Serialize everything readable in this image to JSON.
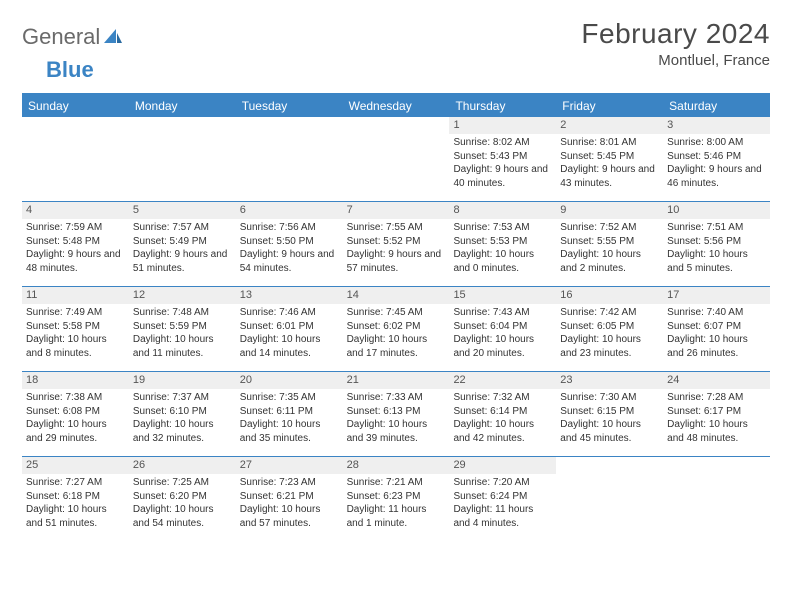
{
  "logo": {
    "text_gray": "General",
    "text_blue": "Blue"
  },
  "header": {
    "title": "February 2024",
    "location": "Montluel, France"
  },
  "weekdays": [
    "Sunday",
    "Monday",
    "Tuesday",
    "Wednesday",
    "Thursday",
    "Friday",
    "Saturday"
  ],
  "colors": {
    "accent": "#3b84c4",
    "daynum_bg": "#efefef",
    "text": "#4a4a4a"
  },
  "weeks": [
    [
      {
        "n": "",
        "sunrise": "",
        "sunset": "",
        "daylight": ""
      },
      {
        "n": "",
        "sunrise": "",
        "sunset": "",
        "daylight": ""
      },
      {
        "n": "",
        "sunrise": "",
        "sunset": "",
        "daylight": ""
      },
      {
        "n": "",
        "sunrise": "",
        "sunset": "",
        "daylight": ""
      },
      {
        "n": "1",
        "sunrise": "Sunrise: 8:02 AM",
        "sunset": "Sunset: 5:43 PM",
        "daylight": "Daylight: 9 hours and 40 minutes."
      },
      {
        "n": "2",
        "sunrise": "Sunrise: 8:01 AM",
        "sunset": "Sunset: 5:45 PM",
        "daylight": "Daylight: 9 hours and 43 minutes."
      },
      {
        "n": "3",
        "sunrise": "Sunrise: 8:00 AM",
        "sunset": "Sunset: 5:46 PM",
        "daylight": "Daylight: 9 hours and 46 minutes."
      }
    ],
    [
      {
        "n": "4",
        "sunrise": "Sunrise: 7:59 AM",
        "sunset": "Sunset: 5:48 PM",
        "daylight": "Daylight: 9 hours and 48 minutes."
      },
      {
        "n": "5",
        "sunrise": "Sunrise: 7:57 AM",
        "sunset": "Sunset: 5:49 PM",
        "daylight": "Daylight: 9 hours and 51 minutes."
      },
      {
        "n": "6",
        "sunrise": "Sunrise: 7:56 AM",
        "sunset": "Sunset: 5:50 PM",
        "daylight": "Daylight: 9 hours and 54 minutes."
      },
      {
        "n": "7",
        "sunrise": "Sunrise: 7:55 AM",
        "sunset": "Sunset: 5:52 PM",
        "daylight": "Daylight: 9 hours and 57 minutes."
      },
      {
        "n": "8",
        "sunrise": "Sunrise: 7:53 AM",
        "sunset": "Sunset: 5:53 PM",
        "daylight": "Daylight: 10 hours and 0 minutes."
      },
      {
        "n": "9",
        "sunrise": "Sunrise: 7:52 AM",
        "sunset": "Sunset: 5:55 PM",
        "daylight": "Daylight: 10 hours and 2 minutes."
      },
      {
        "n": "10",
        "sunrise": "Sunrise: 7:51 AM",
        "sunset": "Sunset: 5:56 PM",
        "daylight": "Daylight: 10 hours and 5 minutes."
      }
    ],
    [
      {
        "n": "11",
        "sunrise": "Sunrise: 7:49 AM",
        "sunset": "Sunset: 5:58 PM",
        "daylight": "Daylight: 10 hours and 8 minutes."
      },
      {
        "n": "12",
        "sunrise": "Sunrise: 7:48 AM",
        "sunset": "Sunset: 5:59 PM",
        "daylight": "Daylight: 10 hours and 11 minutes."
      },
      {
        "n": "13",
        "sunrise": "Sunrise: 7:46 AM",
        "sunset": "Sunset: 6:01 PM",
        "daylight": "Daylight: 10 hours and 14 minutes."
      },
      {
        "n": "14",
        "sunrise": "Sunrise: 7:45 AM",
        "sunset": "Sunset: 6:02 PM",
        "daylight": "Daylight: 10 hours and 17 minutes."
      },
      {
        "n": "15",
        "sunrise": "Sunrise: 7:43 AM",
        "sunset": "Sunset: 6:04 PM",
        "daylight": "Daylight: 10 hours and 20 minutes."
      },
      {
        "n": "16",
        "sunrise": "Sunrise: 7:42 AM",
        "sunset": "Sunset: 6:05 PM",
        "daylight": "Daylight: 10 hours and 23 minutes."
      },
      {
        "n": "17",
        "sunrise": "Sunrise: 7:40 AM",
        "sunset": "Sunset: 6:07 PM",
        "daylight": "Daylight: 10 hours and 26 minutes."
      }
    ],
    [
      {
        "n": "18",
        "sunrise": "Sunrise: 7:38 AM",
        "sunset": "Sunset: 6:08 PM",
        "daylight": "Daylight: 10 hours and 29 minutes."
      },
      {
        "n": "19",
        "sunrise": "Sunrise: 7:37 AM",
        "sunset": "Sunset: 6:10 PM",
        "daylight": "Daylight: 10 hours and 32 minutes."
      },
      {
        "n": "20",
        "sunrise": "Sunrise: 7:35 AM",
        "sunset": "Sunset: 6:11 PM",
        "daylight": "Daylight: 10 hours and 35 minutes."
      },
      {
        "n": "21",
        "sunrise": "Sunrise: 7:33 AM",
        "sunset": "Sunset: 6:13 PM",
        "daylight": "Daylight: 10 hours and 39 minutes."
      },
      {
        "n": "22",
        "sunrise": "Sunrise: 7:32 AM",
        "sunset": "Sunset: 6:14 PM",
        "daylight": "Daylight: 10 hours and 42 minutes."
      },
      {
        "n": "23",
        "sunrise": "Sunrise: 7:30 AM",
        "sunset": "Sunset: 6:15 PM",
        "daylight": "Daylight: 10 hours and 45 minutes."
      },
      {
        "n": "24",
        "sunrise": "Sunrise: 7:28 AM",
        "sunset": "Sunset: 6:17 PM",
        "daylight": "Daylight: 10 hours and 48 minutes."
      }
    ],
    [
      {
        "n": "25",
        "sunrise": "Sunrise: 7:27 AM",
        "sunset": "Sunset: 6:18 PM",
        "daylight": "Daylight: 10 hours and 51 minutes."
      },
      {
        "n": "26",
        "sunrise": "Sunrise: 7:25 AM",
        "sunset": "Sunset: 6:20 PM",
        "daylight": "Daylight: 10 hours and 54 minutes."
      },
      {
        "n": "27",
        "sunrise": "Sunrise: 7:23 AM",
        "sunset": "Sunset: 6:21 PM",
        "daylight": "Daylight: 10 hours and 57 minutes."
      },
      {
        "n": "28",
        "sunrise": "Sunrise: 7:21 AM",
        "sunset": "Sunset: 6:23 PM",
        "daylight": "Daylight: 11 hours and 1 minute."
      },
      {
        "n": "29",
        "sunrise": "Sunrise: 7:20 AM",
        "sunset": "Sunset: 6:24 PM",
        "daylight": "Daylight: 11 hours and 4 minutes."
      },
      {
        "n": "",
        "sunrise": "",
        "sunset": "",
        "daylight": ""
      },
      {
        "n": "",
        "sunrise": "",
        "sunset": "",
        "daylight": ""
      }
    ]
  ]
}
